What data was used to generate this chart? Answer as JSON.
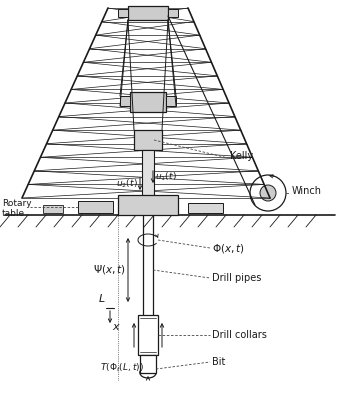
{
  "bg_color": "#ffffff",
  "line_color": "#1a1a1a",
  "dashed_color": "#444444",
  "fig_width": 3.42,
  "fig_height": 4.12,
  "dpi": 100,
  "labels": {
    "kelly": "Kelly",
    "winch": "Winch",
    "rotary_table": "Rotary\ntable",
    "drill_pipes": "Drill pipes",
    "drill_collars": "Drill collars",
    "bit": "Bit",
    "u2": "$u_2(t)$",
    "u1": "$u_1(t)$",
    "Phi": "$\\Phi(x,t)$",
    "Psi": "$\\Psi(x,t)$",
    "L": "$L$",
    "x": "$x$",
    "T": "$T(\\Phi_t(L,t))$"
  }
}
